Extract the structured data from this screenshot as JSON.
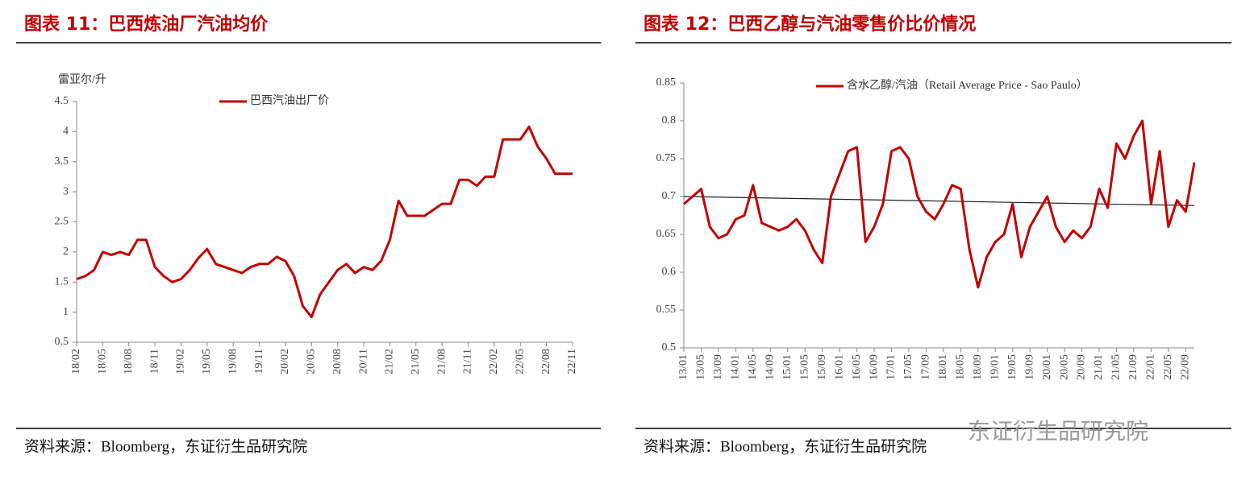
{
  "chart_data": [
    {
      "type": "line",
      "title": "图表 11：巴西炼油厂汽油均价",
      "y_label": "雷亚尔/升",
      "source": "资料来源：Bloomberg，东证衍生品研究院",
      "categories": [
        "18/02",
        null,
        null,
        "18/05",
        null,
        null,
        "18/08",
        null,
        null,
        "18/11",
        null,
        null,
        "19/02",
        null,
        null,
        "19/05",
        null,
        null,
        "19/08",
        null,
        null,
        "19/11",
        null,
        null,
        "20/02",
        null,
        null,
        "20/05",
        null,
        null,
        "20/08",
        null,
        null,
        "20/11",
        null,
        null,
        "21/02",
        null,
        null,
        "21/05",
        null,
        null,
        "21/08",
        null,
        null,
        "21/11",
        null,
        null,
        "22/02",
        null,
        null,
        "22/05",
        null,
        null,
        "22/08",
        null,
        null,
        "22/11"
      ],
      "series": [
        {
          "name": "巴西汽油出厂价",
          "color": "#c00000",
          "values": [
            1.55,
            1.6,
            1.7,
            2.0,
            1.95,
            2.0,
            1.95,
            2.2,
            2.2,
            1.75,
            1.6,
            1.5,
            1.55,
            1.7,
            1.9,
            2.05,
            1.8,
            1.75,
            1.7,
            1.65,
            1.75,
            1.8,
            1.8,
            1.92,
            1.85,
            1.6,
            1.1,
            0.92,
            1.3,
            1.5,
            1.7,
            1.8,
            1.65,
            1.75,
            1.7,
            1.85,
            2.2,
            2.85,
            2.6,
            2.6,
            2.6,
            2.7,
            2.8,
            2.8,
            3.2,
            3.2,
            3.1,
            3.25,
            3.25,
            3.87,
            3.87,
            3.87,
            4.08,
            3.75,
            3.55,
            3.3,
            3.3,
            3.3
          ]
        }
      ],
      "ylim": [
        0.5,
        4.5
      ],
      "yticks": [
        0.5,
        1,
        1.5,
        2,
        2.5,
        3,
        3.5,
        4,
        4.5
      ]
    },
    {
      "type": "line",
      "title": "图表 12：巴西乙醇与汽油零售价比价情况",
      "source": "资料来源：Bloomberg，东证衍生品研究院",
      "watermark": "东证衍生品研究院",
      "categories": [
        "13/01",
        null,
        "13/05",
        null,
        "13/09",
        null,
        "14/01",
        null,
        "14/05",
        null,
        "14/09",
        null,
        "15/01",
        null,
        "15/05",
        null,
        "15/09",
        null,
        "16/01",
        null,
        "16/05",
        null,
        "16/09",
        null,
        "17/01",
        null,
        "17/05",
        null,
        "17/09",
        null,
        "18/01",
        null,
        "18/05",
        null,
        "18/09",
        null,
        "19/01",
        null,
        "19/05",
        null,
        "19/09",
        null,
        "20/01",
        null,
        "20/05",
        null,
        "20/09",
        null,
        "21/01",
        null,
        "21/05",
        null,
        "21/09",
        null,
        "22/01",
        null,
        "22/05",
        null,
        "22/09",
        null
      ],
      "series": [
        {
          "name": "含水乙醇/汽油（Retail Average Price - Sao Paulo）",
          "color": "#c00000",
          "values": [
            0.69,
            0.7,
            0.71,
            0.66,
            0.645,
            0.65,
            0.67,
            0.675,
            0.715,
            0.665,
            0.66,
            0.655,
            0.66,
            0.67,
            0.655,
            0.63,
            0.612,
            0.7,
            0.73,
            0.76,
            0.765,
            0.64,
            0.66,
            0.69,
            0.76,
            0.765,
            0.75,
            0.7,
            0.68,
            0.67,
            0.69,
            0.715,
            0.71,
            0.63,
            0.58,
            0.62,
            0.64,
            0.65,
            0.69,
            0.62,
            0.66,
            0.68,
            0.7,
            0.66,
            0.64,
            0.655,
            0.645,
            0.66,
            0.71,
            0.685,
            0.77,
            0.75,
            0.78,
            0.8,
            0.69,
            0.76,
            0.66,
            0.695,
            0.68,
            0.745
          ]
        }
      ],
      "trend_line": [
        0.7,
        0.688
      ],
      "ylim": [
        0.5,
        0.85
      ],
      "yticks": [
        0.5,
        0.55,
        0.6,
        0.65,
        0.7,
        0.75,
        0.8,
        0.85
      ]
    }
  ]
}
